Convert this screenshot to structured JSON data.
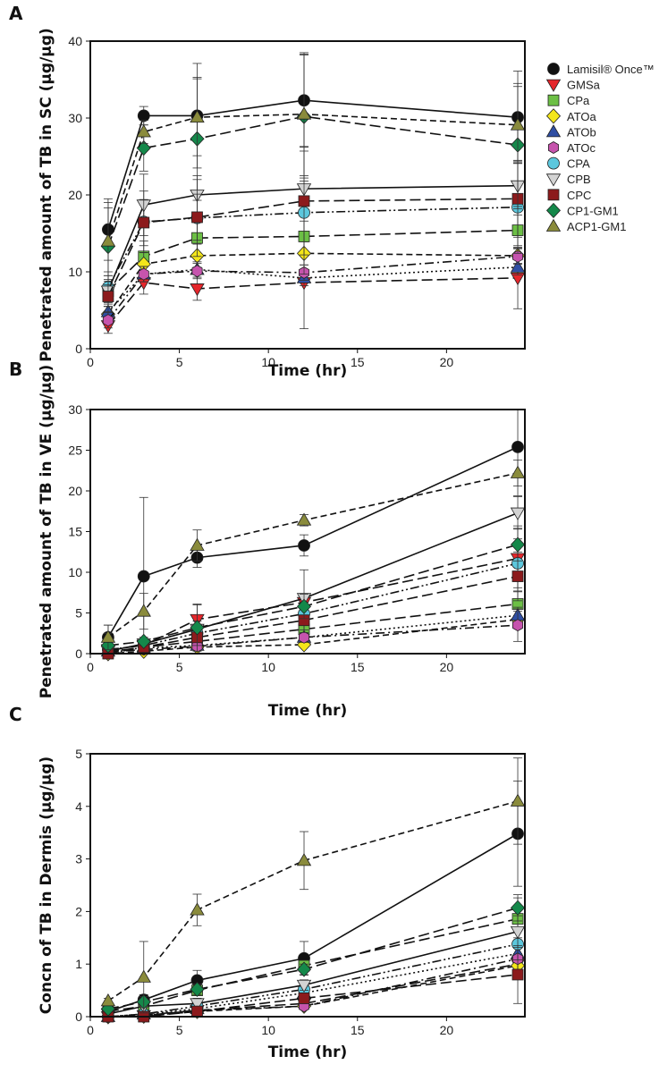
{
  "chart_data": [
    {
      "panel": "A",
      "type": "line",
      "ylabel": "Penetrated amount of TB in SC (µg/µg)",
      "xlabel": "Time (hr)",
      "xlim": [
        0,
        24.4
      ],
      "ylim": [
        0,
        40
      ],
      "xticks": [
        "0",
        "5",
        "10",
        "15",
        "20"
      ],
      "yticks": [
        "0",
        "10",
        "20",
        "30",
        "40"
      ],
      "x": [
        1,
        3,
        6,
        12,
        24
      ],
      "series": [
        {
          "name": "Lamisil® Once™",
          "values": [
            15.5,
            30.3,
            30.3,
            32.3,
            30.1
          ],
          "error": [
            4,
            1.2,
            6.8,
            6,
            6
          ]
        },
        {
          "name": "GMSa",
          "values": [
            3,
            8.6,
            7.8,
            8.6,
            9.2
          ],
          "error": [
            1,
            1.5,
            1.5,
            6,
            4
          ]
        },
        {
          "name": "CPa",
          "values": [
            7.5,
            12,
            14.4,
            14.6,
            15.4
          ],
          "error": [
            2,
            2,
            2,
            2,
            2
          ]
        },
        {
          "name": "ATOa",
          "values": [
            4.5,
            11,
            12.1,
            12.4,
            12.1
          ],
          "error": [
            1,
            1.5,
            1.5,
            1.5,
            1
          ]
        },
        {
          "name": "ATOb",
          "values": [
            4.8,
            9.7,
            10.3,
            9.2,
            10.6
          ],
          "error": [
            1,
            1,
            1,
            1,
            1
          ]
        },
        {
          "name": "ATOc",
          "values": [
            3.7,
            9.7,
            10.1,
            9.9,
            12
          ],
          "error": [
            1,
            1,
            1,
            1,
            1
          ]
        },
        {
          "name": "CPA",
          "values": [
            8,
            16.5,
            17,
            17.7,
            18.4
          ],
          "error": [
            2,
            4,
            5,
            8,
            6
          ]
        },
        {
          "name": "CPB",
          "values": [
            7.5,
            18.7,
            20,
            20.8,
            21.2
          ],
          "error": [
            2,
            4,
            2.5,
            1,
            3
          ]
        },
        {
          "name": "CPC",
          "values": [
            6.8,
            16.4,
            17.1,
            19.2,
            19.5
          ],
          "error": [
            2,
            3,
            3,
            7,
            5
          ]
        },
        {
          "name": "CP1-GM1",
          "values": [
            13.3,
            26.1,
            27.3,
            30.2,
            26.5
          ],
          "error": [
            5,
            3,
            8,
            8,
            8
          ]
        },
        {
          "name": "ACP1-GM1",
          "values": [
            14,
            28.2,
            30.1,
            30.5,
            29.1
          ],
          "error": [
            5,
            1.5,
            5,
            8,
            5
          ]
        }
      ]
    },
    {
      "panel": "B",
      "type": "line",
      "ylabel": "Penetrated amount of TB in VE (µg/µg)",
      "xlabel": "Time (hr)",
      "xlim": [
        0,
        24.4
      ],
      "ylim": [
        0,
        30
      ],
      "xticks": [
        "0",
        "5",
        "10",
        "15",
        "20"
      ],
      "yticks": [
        "0",
        "5",
        "10",
        "15",
        "20",
        "25",
        "30"
      ],
      "x": [
        1,
        3,
        6,
        12,
        24
      ],
      "series": [
        {
          "name": "Lamisil® Once™",
          "values": [
            2,
            9.5,
            11.8,
            13.3,
            25.4
          ],
          "error": [
            1.5,
            9.7,
            1.2,
            1.3,
            6
          ]
        },
        {
          "name": "GMSa",
          "values": [
            0.5,
            1,
            4.2,
            6.3,
            11.7
          ],
          "error": [
            0.5,
            0.5,
            1.8,
            4,
            4
          ]
        },
        {
          "name": "CPa",
          "values": [
            0.2,
            0.8,
            1.5,
            3,
            6.1
          ],
          "error": [
            0.3,
            0.5,
            0.5,
            1,
            1.5
          ]
        },
        {
          "name": "ATOa",
          "values": [
            0,
            0.3,
            0.8,
            1.1,
            4.2
          ],
          "error": [
            0.2,
            0.2,
            0.3,
            0.3,
            1
          ]
        },
        {
          "name": "ATOb",
          "values": [
            0.3,
            0.7,
            1,
            2,
            4.7
          ],
          "error": [
            0.3,
            0.3,
            0.3,
            0.5,
            1
          ]
        },
        {
          "name": "ATOc",
          "values": [
            0.2,
            0.5,
            0.9,
            2,
            3.5
          ],
          "error": [
            0.2,
            0.3,
            0.3,
            0.5,
            2
          ]
        },
        {
          "name": "CPA",
          "values": [
            0.5,
            1,
            2.5,
            4.9,
            11.1
          ],
          "error": [
            0.5,
            0.5,
            1,
            2,
            3
          ]
        },
        {
          "name": "CPB",
          "values": [
            0.3,
            1.2,
            3,
            6.8,
            17.3
          ],
          "error": [
            0.5,
            0.5,
            1,
            0.5,
            2
          ]
        },
        {
          "name": "CPC",
          "values": [
            0,
            0.8,
            2,
            4.1,
            9.5
          ],
          "error": [
            0.3,
            0.5,
            1,
            1.5,
            3
          ]
        },
        {
          "name": "CP1-GM1",
          "values": [
            1,
            1.5,
            3.2,
            5.8,
            13.4
          ],
          "error": [
            1.5,
            0.5,
            2.9,
            1.5,
            2
          ]
        },
        {
          "name": "ACP1-GM1",
          "values": [
            2,
            5.2,
            13.3,
            16.4,
            22.2
          ],
          "error": [
            1.5,
            2.2,
            1.9,
            0.7,
            1.6
          ]
        }
      ]
    },
    {
      "panel": "C",
      "type": "line",
      "ylabel": "Concn of TB in Dermis (µg/µg)",
      "xlabel": "Time (hr)",
      "xlim": [
        0,
        24.4
      ],
      "ylim": [
        0,
        5
      ],
      "xticks": [
        "0",
        "5",
        "10",
        "15",
        "20"
      ],
      "yticks": [
        "0",
        "1",
        "2",
        "3",
        "4",
        "5"
      ],
      "x": [
        1,
        3,
        6,
        12,
        24
      ],
      "series": [
        {
          "name": "Lamisil® Once™",
          "values": [
            0.1,
            0.32,
            0.69,
            1.11,
            3.48
          ],
          "error": [
            0.05,
            0.1,
            0.19,
            0.32,
            1.0
          ]
        },
        {
          "name": "GMSa",
          "values": [
            0,
            0.02,
            0.12,
            0.25,
            1.0
          ],
          "error": [
            0.02,
            0.02,
            0.05,
            0.05,
            0.2
          ]
        },
        {
          "name": "CPa",
          "values": [
            0.1,
            0.2,
            0.5,
            0.97,
            1.86
          ],
          "error": [
            0.05,
            0.05,
            0.1,
            0.1,
            0.4
          ]
        },
        {
          "name": "ATOa",
          "values": [
            0,
            0.01,
            0.1,
            0.2,
            0.97
          ],
          "error": [
            0.02,
            0.02,
            0.05,
            0.05,
            0.2
          ]
        },
        {
          "name": "ATOb",
          "values": [
            0,
            0.05,
            0.15,
            0.45,
            1.2
          ],
          "error": [
            0.02,
            0.02,
            0.05,
            0.1,
            0.3
          ]
        },
        {
          "name": "ATOc",
          "values": [
            0,
            0.03,
            0.12,
            0.2,
            1.1
          ],
          "error": [
            0.02,
            0.02,
            0.05,
            0.05,
            0.3
          ]
        },
        {
          "name": "CPA",
          "values": [
            0,
            0.05,
            0.2,
            0.52,
            1.38
          ],
          "error": [
            0.02,
            0.05,
            0.05,
            0.1,
            0.3
          ]
        },
        {
          "name": "CPB",
          "values": [
            0.05,
            0.2,
            0.25,
            0.6,
            1.62
          ],
          "error": [
            0.05,
            0.1,
            0.1,
            0.1,
            0.3
          ]
        },
        {
          "name": "CPC",
          "values": [
            0,
            0,
            0.1,
            0.35,
            0.8
          ],
          "error": [
            0.02,
            0.02,
            0.05,
            0.1,
            0.55
          ]
        },
        {
          "name": "CP1-GM1",
          "values": [
            0.15,
            0.28,
            0.52,
            0.9,
            2.07
          ],
          "error": [
            0.05,
            0.1,
            0.1,
            0.1,
            0.25
          ]
        },
        {
          "name": "ACP1-GM1",
          "values": [
            0.3,
            0.75,
            2.03,
            2.97,
            4.1
          ],
          "error": [
            0.05,
            0.68,
            0.3,
            0.55,
            0.82
          ]
        }
      ]
    }
  ],
  "legend": {
    "placement": "right of panel A",
    "items": [
      {
        "label": "Lamisil® Once™",
        "marker": "circle",
        "color": "#111111",
        "line": "solid"
      },
      {
        "label": "GMSa",
        "marker": "triangle-down",
        "color": "#e5262b",
        "line": "longdash"
      },
      {
        "label": "CPa",
        "marker": "square",
        "color": "#6cbf45",
        "line": "longdash"
      },
      {
        "label": "ATOa",
        "marker": "diamond",
        "color": "#f4e61a",
        "line": "dash"
      },
      {
        "label": "ATOb",
        "marker": "triangle-up",
        "color": "#2f4ea3",
        "line": "dot"
      },
      {
        "label": "ATOc",
        "marker": "hexagon",
        "color": "#c654ad",
        "line": "dashdot"
      },
      {
        "label": "CPA",
        "marker": "circle",
        "color": "#5cc7dd",
        "line": "dashdotdot"
      },
      {
        "label": "CPB",
        "marker": "triangle-down",
        "color": "#d3d3d3",
        "line": "solid"
      },
      {
        "label": "CPC",
        "marker": "square",
        "color": "#8c1a1c",
        "line": "longdash"
      },
      {
        "label": "CP1-GM1",
        "marker": "diamond",
        "color": "#14884a",
        "line": "longdash"
      },
      {
        "label": "ACP1-GM1",
        "marker": "triangle-up",
        "color": "#8a8b3c",
        "line": "dash"
      }
    ]
  }
}
